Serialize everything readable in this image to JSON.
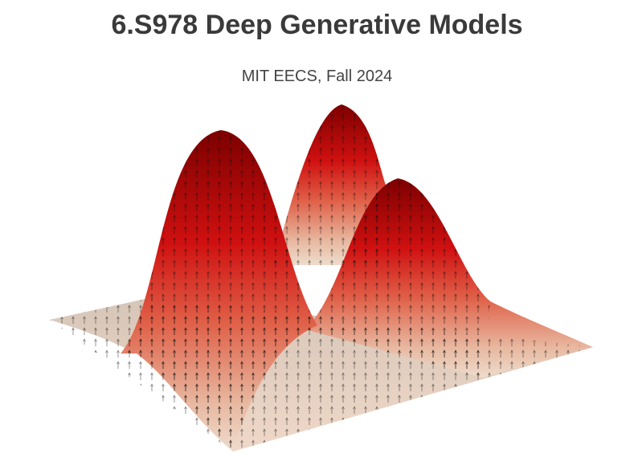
{
  "header": {
    "title": "6.S978 Deep Generative Models",
    "subtitle": "MIT EECS, Fall 2024"
  }
}
